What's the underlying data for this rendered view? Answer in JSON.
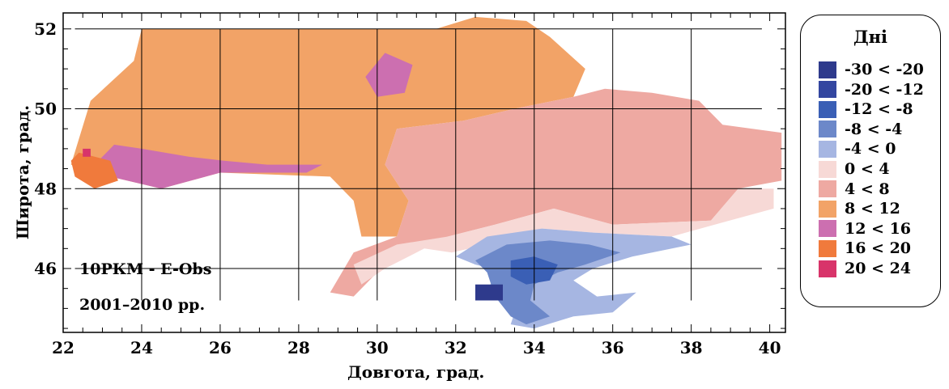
{
  "map": {
    "x_label": "Довгота, град.",
    "y_label": "Широта, град.",
    "annotation_line1": "10РКМ - E-Obs",
    "annotation_line2": "2001–2010 рр.",
    "x_ticks": [
      "22",
      "24",
      "26",
      "28",
      "30",
      "32",
      "34",
      "36",
      "38",
      "40"
    ],
    "y_ticks": [
      "46",
      "48",
      "50",
      "52"
    ]
  },
  "legend": {
    "title": "Дні",
    "items": [
      {
        "label": "-30 < -20",
        "color": "#2e3a8c"
      },
      {
        "label": "-20 < -12",
        "color": "#3346a0"
      },
      {
        "label": "-12 < -8",
        "color": "#3a5fb5"
      },
      {
        "label": "-8 < -4",
        "color": "#6c88c9"
      },
      {
        "label": "-4 < 0",
        "color": "#a6b6e2"
      },
      {
        "label": "0 < 4",
        "color": "#f7d9d6"
      },
      {
        "label": "4 < 8",
        "color": "#eea9a2"
      },
      {
        "label": "8 < 12",
        "color": "#f2a367"
      },
      {
        "label": "12 < 16",
        "color": "#cc6fb0"
      },
      {
        "label": "16 < 20",
        "color": "#f07a3c"
      },
      {
        "label": "20 < 24",
        "color": "#d8346a"
      }
    ]
  },
  "chart_data": {
    "type": "heatmap",
    "xlabel": "Довгота, град.",
    "ylabel": "Широта, град.",
    "xlim": [
      22,
      40.4
    ],
    "ylim": [
      44.4,
      52.4
    ],
    "regions": [
      {
        "bin": "8 < 12",
        "polygon": [
          [
            22.7,
            50.2
          ],
          [
            23.8,
            51.2
          ],
          [
            24,
            52.0
          ],
          [
            31.5,
            52.0
          ],
          [
            32.5,
            52.3
          ],
          [
            33.8,
            52.2
          ],
          [
            34.4,
            51.8
          ],
          [
            35.3,
            51.0
          ],
          [
            35.0,
            50.3
          ],
          [
            33.5,
            50.0
          ],
          [
            32.2,
            49.7
          ],
          [
            30.5,
            49.5
          ],
          [
            30.2,
            48.6
          ],
          [
            30.8,
            47.7
          ],
          [
            30.5,
            46.8
          ],
          [
            29.6,
            46.8
          ],
          [
            29.4,
            47.7
          ],
          [
            28.8,
            48.3
          ],
          [
            26,
            48.4
          ],
          [
            24.5,
            48.0
          ],
          [
            23.2,
            48.3
          ],
          [
            22.2,
            48.6
          ]
        ]
      },
      {
        "bin": "4 < 8",
        "polygon": [
          [
            30.2,
            48.6
          ],
          [
            30.5,
            49.5
          ],
          [
            32.2,
            49.7
          ],
          [
            33.5,
            50.0
          ],
          [
            35.0,
            50.3
          ],
          [
            35.8,
            50.5
          ],
          [
            37,
            50.4
          ],
          [
            38.2,
            50.2
          ],
          [
            38.8,
            49.6
          ],
          [
            40.3,
            49.4
          ],
          [
            40.3,
            48.2
          ],
          [
            39.2,
            48.0
          ],
          [
            38.5,
            47.2
          ],
          [
            36,
            47.1
          ],
          [
            34.5,
            47.5
          ],
          [
            33.0,
            47.1
          ],
          [
            31.8,
            46.8
          ],
          [
            30.8,
            46.5
          ],
          [
            30.0,
            45.9
          ],
          [
            29.4,
            45.3
          ],
          [
            28.8,
            45.4
          ],
          [
            29.4,
            46.4
          ],
          [
            30.5,
            46.8
          ],
          [
            30.8,
            47.7
          ]
        ]
      },
      {
        "bin": "0 < 4",
        "polygon": [
          [
            31.8,
            46.8
          ],
          [
            33.0,
            47.1
          ],
          [
            34.5,
            47.5
          ],
          [
            36,
            47.1
          ],
          [
            38.5,
            47.2
          ],
          [
            39.2,
            48.0
          ],
          [
            40.1,
            48.0
          ],
          [
            40.1,
            47.5
          ],
          [
            38.6,
            47.1
          ],
          [
            37.5,
            46.8
          ],
          [
            35.5,
            46.9
          ],
          [
            34.2,
            47.0
          ],
          [
            32.8,
            46.6
          ],
          [
            31.9,
            46.4
          ],
          [
            31.2,
            46.5
          ],
          [
            30.2,
            46.0
          ],
          [
            29.6,
            45.6
          ],
          [
            29.4,
            46.1
          ],
          [
            30.5,
            46.6
          ]
        ]
      },
      {
        "bin": "-4 < 0",
        "polygon": [
          [
            32.0,
            46.3
          ],
          [
            32.8,
            46.8
          ],
          [
            34.2,
            47.0
          ],
          [
            35.5,
            46.9
          ],
          [
            37.5,
            46.8
          ],
          [
            38.0,
            46.6
          ],
          [
            36.5,
            46.3
          ],
          [
            35.5,
            46.0
          ],
          [
            35.0,
            45.7
          ],
          [
            35.6,
            45.3
          ],
          [
            36.6,
            45.4
          ],
          [
            36.0,
            44.9
          ],
          [
            35.0,
            44.8
          ],
          [
            34.0,
            44.5
          ],
          [
            33.4,
            44.6
          ],
          [
            33.6,
            45.2
          ],
          [
            32.6,
            45.4
          ],
          [
            33.3,
            45.9
          ],
          [
            32.5,
            46.1
          ]
        ]
      },
      {
        "bin": "-8 < -4",
        "polygon": [
          [
            32.5,
            46.2
          ],
          [
            33.3,
            46.6
          ],
          [
            34.4,
            46.7
          ],
          [
            35.4,
            46.6
          ],
          [
            36.2,
            46.4
          ],
          [
            35.3,
            46.1
          ],
          [
            34.6,
            45.9
          ],
          [
            34.0,
            45.6
          ],
          [
            33.9,
            45.2
          ],
          [
            34.4,
            44.8
          ],
          [
            33.8,
            44.6
          ],
          [
            33.4,
            44.8
          ],
          [
            33.0,
            45.3
          ],
          [
            32.8,
            45.9
          ]
        ]
      },
      {
        "bin": "-12 < -8",
        "polygon": [
          [
            33.4,
            46.2
          ],
          [
            34.0,
            46.3
          ],
          [
            34.6,
            46.1
          ],
          [
            34.4,
            45.7
          ],
          [
            33.8,
            45.6
          ],
          [
            33.4,
            45.8
          ]
        ]
      },
      {
        "bin": "12 < 16",
        "polygon": [
          [
            22.8,
            48.6
          ],
          [
            23.3,
            49.1
          ],
          [
            24.0,
            49.0
          ],
          [
            25.2,
            48.8
          ],
          [
            26.1,
            48.7
          ],
          [
            27.2,
            48.6
          ],
          [
            28.6,
            48.6
          ],
          [
            28.2,
            48.4
          ],
          [
            26,
            48.4
          ],
          [
            24.5,
            48.0
          ],
          [
            23.2,
            48.3
          ],
          [
            22.6,
            48.5
          ]
        ]
      },
      {
        "bin": "12 < 16",
        "polygon": [
          [
            29.7,
            50.8
          ],
          [
            30.2,
            51.4
          ],
          [
            30.9,
            51.1
          ],
          [
            30.7,
            50.4
          ],
          [
            30.0,
            50.3
          ]
        ]
      },
      {
        "bin": "16 < 20",
        "polygon": [
          [
            22.2,
            48.7
          ],
          [
            22.4,
            48.9
          ],
          [
            23.2,
            48.7
          ],
          [
            23.4,
            48.2
          ],
          [
            22.8,
            48.0
          ],
          [
            22.3,
            48.3
          ]
        ]
      },
      {
        "bin": "-30 < -20",
        "polygon": [
          [
            32.5,
            45.2
          ],
          [
            32.5,
            45.6
          ],
          [
            33.2,
            45.6
          ],
          [
            33.2,
            45.2
          ]
        ]
      },
      {
        "bin": "20 < 24",
        "polygon": [
          [
            22.5,
            48.8
          ],
          [
            22.5,
            49.0
          ],
          [
            22.7,
            49.0
          ],
          [
            22.7,
            48.8
          ]
        ]
      }
    ]
  }
}
